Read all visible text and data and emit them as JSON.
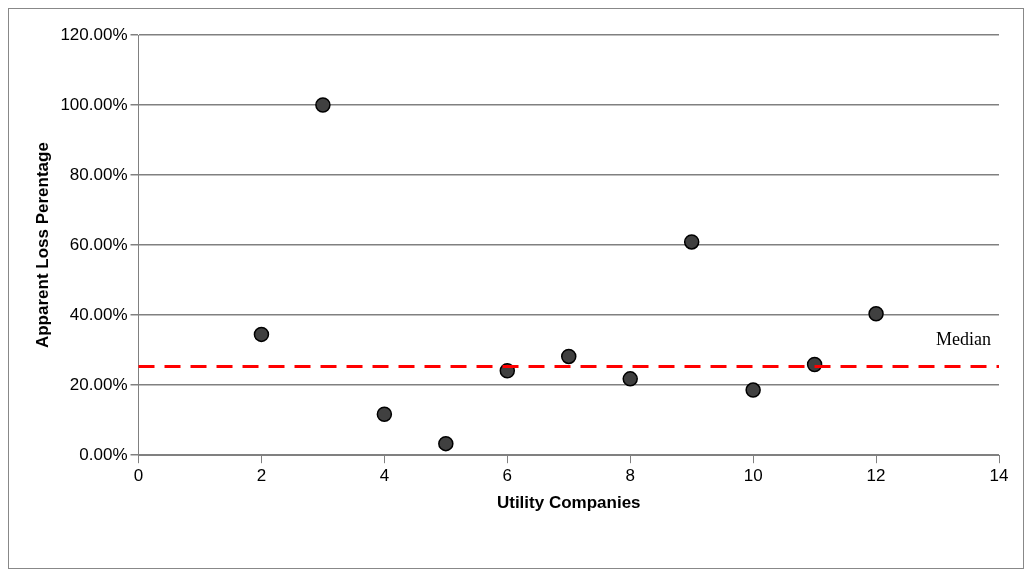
{
  "chart_data": {
    "type": "scatter",
    "xlabel": "Utility Companies",
    "ylabel": "Apparent Loss Perentage",
    "x": [
      2,
      3,
      4,
      5,
      6,
      7,
      8,
      9,
      10,
      11,
      12
    ],
    "series": [
      {
        "color": "#404040",
        "values": [
          34.5,
          100,
          11.7,
          3.3,
          24.1,
          28.2,
          21.8,
          60.9,
          18.6,
          25.9,
          40.4
        ]
      }
    ],
    "xlim": [
      0,
      14
    ],
    "xticks": [
      0,
      2,
      4,
      6,
      8,
      10,
      12,
      14
    ],
    "ylim": [
      0,
      120
    ],
    "yticks": [
      {
        "value": 0,
        "label": "0.00%"
      },
      {
        "value": 20,
        "label": "20.00%"
      },
      {
        "value": 40,
        "label": "40.00%"
      },
      {
        "value": 60,
        "label": "60.00%"
      },
      {
        "value": 80,
        "label": "80.00%"
      },
      {
        "value": 100,
        "label": "100.00%"
      },
      {
        "value": 120,
        "label": "120.00%"
      }
    ],
    "grid": "y",
    "marker": "circle",
    "legend": false,
    "ref_lines": [
      {
        "axis": "y",
        "value": 25.3,
        "label": "Median",
        "color": "#ff0000",
        "line_style": "dashed"
      }
    ]
  }
}
